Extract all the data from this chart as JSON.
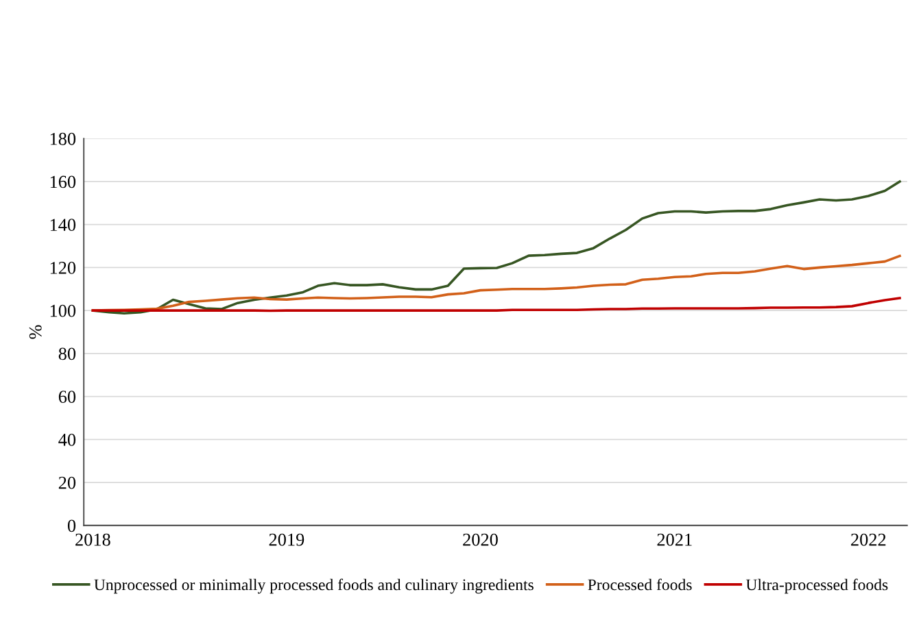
{
  "chart_data": {
    "type": "line",
    "ylabel": "%",
    "x": [
      "2018-01",
      "2018-02",
      "2018-03",
      "2018-04",
      "2018-05",
      "2018-06",
      "2018-07",
      "2018-08",
      "2018-09",
      "2018-10",
      "2018-11",
      "2018-12",
      "2019-01",
      "2019-02",
      "2019-03",
      "2019-04",
      "2019-05",
      "2019-06",
      "2019-07",
      "2019-08",
      "2019-09",
      "2019-10",
      "2019-11",
      "2019-12",
      "2020-01",
      "2020-02",
      "2020-03",
      "2020-04",
      "2020-05",
      "2020-06",
      "2020-07",
      "2020-08",
      "2020-09",
      "2020-10",
      "2020-11",
      "2020-12",
      "2021-01",
      "2021-02",
      "2021-03",
      "2021-04",
      "2021-05",
      "2021-06",
      "2021-07",
      "2021-08",
      "2021-09",
      "2021-10",
      "2021-11",
      "2021-12",
      "2022-01",
      "2022-02",
      "2022-03"
    ],
    "series": [
      {
        "name": "Unprocessed or minimally processed foods and culinary ingredients",
        "color": "#375623",
        "values": [
          100,
          99.2,
          98.7,
          99.2,
          100.5,
          105,
          103,
          101,
          100.7,
          103.5,
          105,
          106,
          107,
          108.5,
          111.5,
          112.7,
          111.8,
          111.8,
          112.2,
          110.8,
          109.8,
          109.8,
          111.5,
          119.5,
          119.7,
          119.8,
          122,
          125.5,
          125.8,
          126.4,
          126.8,
          129,
          133.5,
          137.5,
          142.8,
          145.3,
          146.1,
          146.1,
          145.6,
          146.1,
          146.3,
          146.3,
          147.2,
          149,
          150.3,
          151.7,
          151.2,
          151.7,
          153.3,
          155.7,
          160
        ]
      },
      {
        "name": "Processed foods",
        "color": "#d26019",
        "values": [
          100,
          100.2,
          100.3,
          100.5,
          100.8,
          102.2,
          104,
          104.5,
          105.1,
          105.7,
          106,
          105.3,
          105.1,
          105.6,
          106,
          105.8,
          105.6,
          105.8,
          106.1,
          106.4,
          106.4,
          106.2,
          107.5,
          108,
          109.4,
          109.7,
          110,
          110,
          110,
          110.3,
          110.7,
          111.5,
          112,
          112.2,
          114.3,
          114.8,
          115.6,
          115.9,
          117,
          117.5,
          117.5,
          118.2,
          119.5,
          120.7,
          119.3,
          120,
          120.6,
          121.2,
          122,
          122.8,
          125.4
        ]
      },
      {
        "name": "Ultra-processed foods",
        "color": "#c00000",
        "values": [
          100,
          100,
          100,
          100,
          100,
          100,
          100,
          100,
          100,
          100,
          100,
          99.9,
          100,
          100,
          100,
          100,
          100,
          100,
          100,
          100,
          100,
          100,
          100,
          100,
          100,
          100,
          100.3,
          100.3,
          100.3,
          100.3,
          100.3,
          100.5,
          100.7,
          100.7,
          100.9,
          100.9,
          101,
          101,
          101,
          101,
          101,
          101.1,
          101.3,
          101.3,
          101.4,
          101.4,
          101.6,
          102,
          103.5,
          104.8,
          105.8
        ]
      }
    ],
    "xlim": [
      "2017-12-15",
      "2022-03-15"
    ],
    "xticks": [
      {
        "value": "2018-01",
        "label": "2018"
      },
      {
        "value": "2019-01",
        "label": "2019"
      },
      {
        "value": "2020-01",
        "label": "2020"
      },
      {
        "value": "2021-01",
        "label": "2021"
      },
      {
        "value": "2022-01",
        "label": "2022"
      }
    ],
    "ylim": [
      0,
      180
    ],
    "yticks": [
      0,
      20,
      40,
      60,
      80,
      100,
      120,
      140,
      160,
      180
    ],
    "grid": "y",
    "legend": "bottom",
    "marker": "none",
    "line_style": "solid"
  }
}
